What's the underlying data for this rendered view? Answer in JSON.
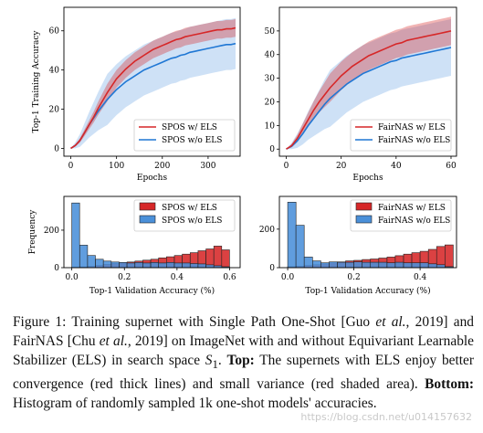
{
  "chart_data": [
    {
      "type": "line",
      "ylabel": "Top-1 Training Accuracy",
      "xlabel": "Epochs",
      "xticks": [
        "0",
        "100",
        "200",
        "300"
      ],
      "yticks": [
        "0",
        "20",
        "40",
        "60"
      ],
      "xlim": [
        -15,
        370
      ],
      "ylim": [
        -4,
        72
      ],
      "legend_position": "lower-right",
      "x": [
        0,
        10,
        20,
        30,
        40,
        50,
        60,
        70,
        80,
        90,
        100,
        110,
        120,
        130,
        140,
        150,
        160,
        170,
        180,
        190,
        200,
        210,
        220,
        230,
        240,
        250,
        260,
        270,
        280,
        290,
        300,
        310,
        320,
        330,
        340,
        350,
        360
      ],
      "series": [
        {
          "name": "SPOS w/ ELS",
          "color": "#d62728",
          "values": [
            0,
            1.5,
            4,
            8,
            12,
            16,
            20.5,
            24.5,
            28.5,
            32,
            35.5,
            38,
            40.5,
            42.5,
            44.5,
            46,
            47.5,
            49,
            50.5,
            51.5,
            52.5,
            53.5,
            54.5,
            55.5,
            56,
            57,
            57.5,
            58,
            58.5,
            59,
            59.5,
            60,
            60.5,
            60.5,
            61,
            61,
            61.5
          ],
          "band": 4.5
        },
        {
          "name": "SPOS w/o ELS",
          "color": "#1f77d4",
          "values": [
            0,
            1.5,
            4,
            8,
            12,
            15.5,
            19,
            22,
            25,
            27.5,
            30,
            32,
            34,
            35.5,
            37,
            38.5,
            40,
            41,
            42,
            43,
            44,
            45,
            46,
            46.5,
            47.5,
            48,
            49,
            49.5,
            50,
            50.5,
            51,
            51.5,
            52,
            52.5,
            53,
            53,
            53.5
          ],
          "band": 13
        }
      ]
    },
    {
      "type": "line",
      "xlabel": "Epochs",
      "xticks": [
        "0",
        "20",
        "40",
        "60"
      ],
      "yticks": [
        "0",
        "10",
        "20",
        "30",
        "40",
        "50"
      ],
      "xlim": [
        -2.5,
        62
      ],
      "ylim": [
        -3,
        60
      ],
      "legend_position": "lower-right",
      "x": [
        0,
        2,
        4,
        6,
        8,
        10,
        12,
        14,
        16,
        18,
        20,
        22,
        24,
        26,
        28,
        30,
        32,
        34,
        36,
        38,
        40,
        42,
        44,
        46,
        48,
        50,
        52,
        54,
        56,
        58,
        60
      ],
      "series": [
        {
          "name": "FairNAS w/ ELS",
          "color": "#d62728",
          "values": [
            0,
            1.5,
            4.5,
            8.5,
            12.5,
            16.5,
            20,
            23,
            26,
            28.5,
            31,
            33,
            35,
            36.5,
            38,
            39.5,
            40.5,
            41.5,
            42.5,
            43.5,
            44.5,
            45,
            46,
            46.5,
            47,
            47.5,
            48,
            48.5,
            49,
            49.5,
            50
          ],
          "band": 6
        },
        {
          "name": "FairNAS w/o ELS",
          "color": "#1f77d4",
          "values": [
            0,
            1.2,
            3.5,
            6.5,
            10,
            13,
            16,
            19,
            21.5,
            23.5,
            25.5,
            27.5,
            29,
            30.5,
            32,
            33,
            34,
            35,
            36,
            37,
            37.5,
            38.5,
            39,
            39.5,
            40,
            40.5,
            41,
            41.5,
            42,
            42.5,
            43
          ],
          "band": 12
        }
      ]
    },
    {
      "type": "bar",
      "ylabel": "Frequency",
      "xlabel": "Top-1 Validation Accuracy (%)",
      "xticks": [
        "0.0",
        "0.2",
        "0.4",
        "0.6"
      ],
      "yticks": [
        "0",
        "200"
      ],
      "xlim": [
        -0.03,
        0.64
      ],
      "ylim": [
        0,
        380
      ],
      "bin_edges": [
        0,
        0.03,
        0.06,
        0.09,
        0.12,
        0.15,
        0.18,
        0.21,
        0.24,
        0.27,
        0.3,
        0.33,
        0.36,
        0.39,
        0.42,
        0.45,
        0.48,
        0.51,
        0.54,
        0.57,
        0.6
      ],
      "legend_position": "top-right",
      "series": [
        {
          "name": "SPOS w/ ELS",
          "color": "#d62728",
          "values": [
            2,
            4,
            7,
            12,
            18,
            22,
            26,
            30,
            35,
            40,
            45,
            52,
            58,
            65,
            72,
            80,
            90,
            100,
            115,
            95
          ]
        },
        {
          "name": "SPOS w/o ELS",
          "color": "#4a90d9",
          "values": [
            345,
            120,
            65,
            45,
            35,
            30,
            28,
            25,
            28,
            25,
            28,
            25,
            28,
            25,
            25,
            22,
            20,
            15,
            10,
            5
          ]
        }
      ]
    },
    {
      "type": "bar",
      "xlabel": "Top-1 Validation Accuracy (%)",
      "xticks": [
        "0.0",
        "0.2",
        "0.4"
      ],
      "yticks": [
        "0",
        "200"
      ],
      "xlim": [
        -0.025,
        0.51
      ],
      "ylim": [
        0,
        370
      ],
      "bin_edges": [
        0,
        0.025,
        0.05,
        0.075,
        0.1,
        0.125,
        0.15,
        0.175,
        0.2,
        0.225,
        0.25,
        0.275,
        0.3,
        0.325,
        0.35,
        0.375,
        0.4,
        0.425,
        0.45,
        0.475,
        0.5
      ],
      "legend_position": "top-right",
      "series": [
        {
          "name": "FairNAS w/ ELS",
          "color": "#d62728",
          "values": [
            5,
            8,
            12,
            15,
            20,
            25,
            30,
            35,
            38,
            42,
            45,
            50,
            55,
            62,
            70,
            78,
            85,
            95,
            110,
            118
          ]
        },
        {
          "name": "FairNAS w/o ELS",
          "color": "#4a90d9",
          "values": [
            340,
            220,
            55,
            35,
            25,
            30,
            28,
            28,
            30,
            28,
            28,
            28,
            25,
            28,
            25,
            25,
            25,
            20,
            15,
            5
          ]
        }
      ]
    }
  ],
  "caption": {
    "label": "Figure 1:",
    "part1": " Training supernet with Single Path One-Shot [Guo ",
    "etal1": "et al.",
    "part2": ", 2019] and FairNAS [Chu ",
    "etal2": "et al.",
    "part3": ", 2019] on ImageNet with and without Equivariant Learnable Stabilizer (ELS) in search space ",
    "space_symbol": "S",
    "space_sub": "1",
    "part4": ". ",
    "top_label": "Top:",
    "part5": " The supernets with ELS enjoy better convergence (red thick lines) and small variance (red shaded area). ",
    "bottom_label": "Bottom:",
    "part6": " Histogram of randomly sampled 1k one-shot models' accuracies."
  },
  "watermark": "https://blog.csdn.net/u014157632"
}
